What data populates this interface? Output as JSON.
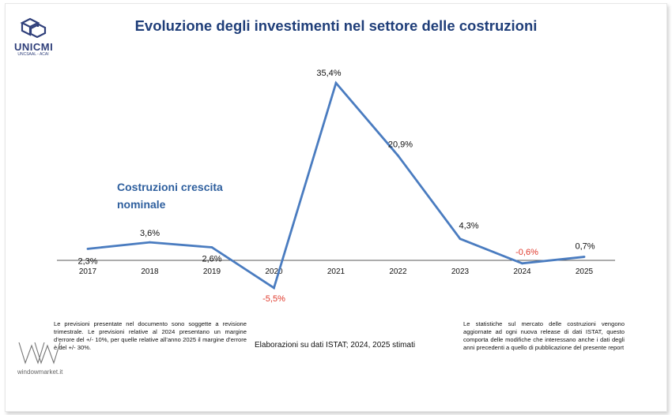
{
  "header": {
    "title": "Evoluzione degli investimenti nel settore delle costruzioni",
    "logo_name": "UNICMI",
    "logo_sub": "UNCSAAL - ACAI"
  },
  "chart_data": {
    "type": "line",
    "categories": [
      "2017",
      "2018",
      "2019",
      "2020",
      "2021",
      "2022",
      "2023",
      "2024",
      "2025"
    ],
    "series": [
      {
        "name": "Costruzioni crescita nominale",
        "values": [
          2.3,
          3.6,
          2.6,
          -5.5,
          35.4,
          20.9,
          4.3,
          -0.6,
          0.7
        ],
        "labels": [
          "2,3%",
          "3,6%",
          "2,6%",
          "-5,5%",
          "35,4%",
          "20,9%",
          "4,3%",
          "-0,6%",
          "0,7%"
        ]
      }
    ],
    "colors": {
      "line": "#4a7cc0",
      "negative_label": "#e03a2c",
      "positive_label": "#111111",
      "axis": "#5a5a5a"
    },
    "grid": false,
    "legend": "inline-left"
  },
  "notes": {
    "left": "Le previsioni presentate nel documento sono soggette a revisione trimestrale. Le previsioni relative al 2024 presentano un margine d’errore del +/- 10%, per quelle relative all’anno 2025 il margine d’errore è del +/- 30%.",
    "source": "Elaborazioni su dati ISTAT; 2024, 2025 stimati",
    "right": "Le statistiche sul mercato delle costruzioni vengono aggiornate ad ogni nuova release di dati ISTAT, questo comporta delle modifiche che interessano anche i dati degli anni precedenti a quello di pubblicazione del presente report"
  },
  "watermark": {
    "text": "windowmarket.it"
  }
}
